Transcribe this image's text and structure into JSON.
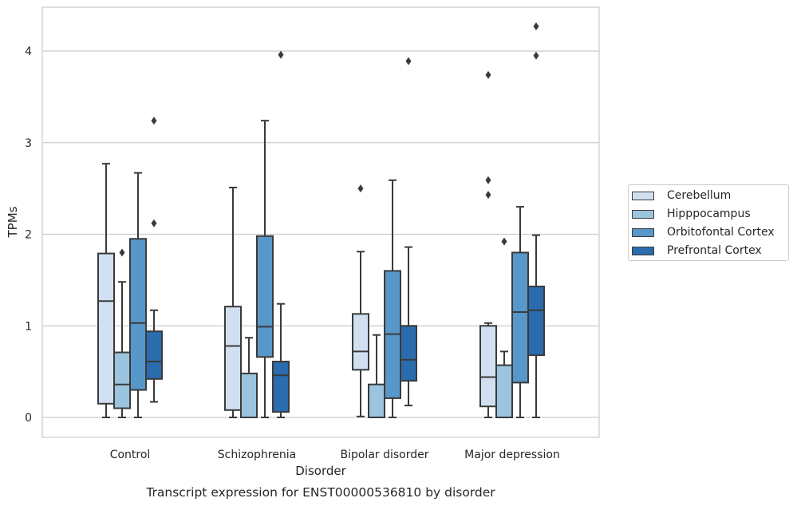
{
  "chart_data": {
    "type": "box",
    "title": "Transcript expression for ENST00000536810 by disorder",
    "xlabel": "Disorder",
    "ylabel": "TPMs",
    "ylim": [
      -0.2,
      4.5
    ],
    "yticks": [
      0,
      1,
      2,
      3,
      4
    ],
    "grid": true,
    "legend_position": "right",
    "categories": [
      "Control",
      "Schizophrenia",
      "Bipolar disorder",
      "Major depression"
    ],
    "series": [
      {
        "name": "Cerebellum",
        "color": "#d1e0f1",
        "boxes": [
          {
            "whisker_low": 0.0,
            "q1": 0.15,
            "median": 1.27,
            "q3": 1.79,
            "whisker_high": 2.77,
            "outliers": []
          },
          {
            "whisker_low": 0.0,
            "q1": 0.08,
            "median": 0.78,
            "q3": 1.21,
            "whisker_high": 2.51,
            "outliers": []
          },
          {
            "whisker_low": 0.01,
            "q1": 0.52,
            "median": 0.72,
            "q3": 1.13,
            "whisker_high": 1.81,
            "outliers": [
              2.5
            ]
          },
          {
            "whisker_low": 0.0,
            "q1": 0.12,
            "median": 0.44,
            "q3": 1.0,
            "whisker_high": 1.03,
            "outliers": [
              2.43,
              2.59,
              3.74
            ]
          }
        ]
      },
      {
        "name": "Hipppocampus",
        "color": "#9bc4de",
        "boxes": [
          {
            "whisker_low": 0.0,
            "q1": 0.1,
            "median": 0.36,
            "q3": 0.71,
            "whisker_high": 1.48,
            "outliers": [
              1.8
            ]
          },
          {
            "whisker_low": 0.0,
            "q1": 0.0,
            "median": 0.0,
            "q3": 0.48,
            "whisker_high": 0.87,
            "outliers": []
          },
          {
            "whisker_low": 0.0,
            "q1": 0.0,
            "median": 0.0,
            "q3": 0.36,
            "whisker_high": 0.9,
            "outliers": []
          },
          {
            "whisker_low": 0.0,
            "q1": 0.0,
            "median": 0.0,
            "q3": 0.57,
            "whisker_high": 0.72,
            "outliers": [
              1.92
            ]
          }
        ]
      },
      {
        "name": "Orbitofontal Cortex",
        "color": "#5797c9",
        "boxes": [
          {
            "whisker_low": 0.0,
            "q1": 0.3,
            "median": 1.03,
            "q3": 1.95,
            "whisker_high": 2.67,
            "outliers": []
          },
          {
            "whisker_low": 0.0,
            "q1": 0.66,
            "median": 0.99,
            "q3": 1.98,
            "whisker_high": 3.24,
            "outliers": []
          },
          {
            "whisker_low": 0.0,
            "q1": 0.21,
            "median": 0.91,
            "q3": 1.6,
            "whisker_high": 2.59,
            "outliers": []
          },
          {
            "whisker_low": 0.0,
            "q1": 0.38,
            "median": 1.15,
            "q3": 1.8,
            "whisker_high": 2.3,
            "outliers": []
          }
        ]
      },
      {
        "name": "Prefrontal Cortex",
        "color": "#2a6cae",
        "boxes": [
          {
            "whisker_low": 0.17,
            "q1": 0.42,
            "median": 0.61,
            "q3": 0.94,
            "whisker_high": 1.17,
            "outliers": [
              2.12,
              3.24
            ]
          },
          {
            "whisker_low": 0.0,
            "q1": 0.06,
            "median": 0.46,
            "q3": 0.61,
            "whisker_high": 1.24,
            "outliers": [
              3.96
            ]
          },
          {
            "whisker_low": 0.13,
            "q1": 0.4,
            "median": 0.63,
            "q3": 1.0,
            "whisker_high": 1.86,
            "outliers": [
              3.89
            ]
          },
          {
            "whisker_low": 0.0,
            "q1": 0.68,
            "median": 1.17,
            "q3": 1.43,
            "whisker_high": 1.99,
            "outliers": [
              3.95,
              4.27
            ]
          }
        ]
      }
    ]
  }
}
